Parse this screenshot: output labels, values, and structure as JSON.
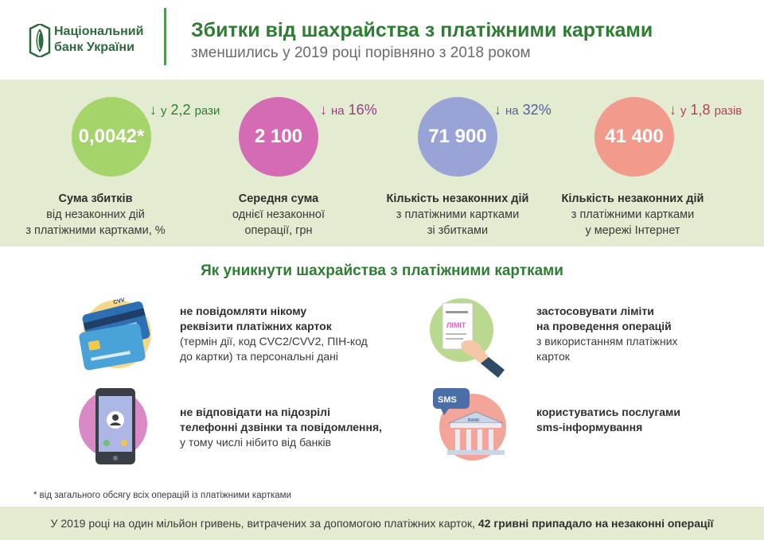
{
  "header": {
    "bank_line1": "Національний",
    "bank_line2": "банк України",
    "title": "Збитки від шахрайства з платіжними картками",
    "subtitle": "зменшились у 2019 році порівняно з 2018 роком"
  },
  "colors": {
    "green_dark": "#2e7d32",
    "band": "#e3ecd0",
    "stat1": "#a5d46a",
    "stat2": "#d56bb5",
    "stat3": "#9aa3d6",
    "stat4": "#f29a8c",
    "change1": "#2e7d32",
    "change2": "#9b3c86",
    "change3": "#5560a0",
    "change4": "#b0435a"
  },
  "stats": [
    {
      "value": "0,0042*",
      "change_prefix": "у",
      "change_value": "2,2",
      "change_suffix": "рази",
      "label_bold": "Сума збитків",
      "label_line2": "від незаконних дій",
      "label_line3": "з платіжними картками, %"
    },
    {
      "value": "2 100",
      "change_prefix": "на",
      "change_value": "16%",
      "change_suffix": "",
      "label_bold": "Середня сума",
      "label_line2": "однієї незаконної",
      "label_line3": "операції, грн"
    },
    {
      "value": "71 900",
      "change_prefix": "на",
      "change_value": "32%",
      "change_suffix": "",
      "label_bold": "Кількість незаконних дій",
      "label_line2": "з платіжними картками",
      "label_line3": "зі збитками"
    },
    {
      "value": "41 400",
      "change_prefix": "у",
      "change_value": "1,8",
      "change_suffix": "разів",
      "label_bold": "Кількість незаконних дій",
      "label_line2": "з платіжними картками",
      "label_line3": "у мережі Інтернет"
    }
  ],
  "tips": {
    "title": "Як уникнути шахрайства з платіжними картками",
    "items": [
      {
        "bold1": "не повідомляти нікому",
        "bold2": "реквізити платіжних карток",
        "text1": "(термін дії, код CVC2/CVV2, ПІН-код",
        "text2": "до картки) та персональні дані",
        "icon_label": "CVV"
      },
      {
        "bold1": "застосовувати ліміти",
        "bold2": "на проведення операцій",
        "text1": "з використанням платіжних",
        "text2": "карток",
        "icon_label": "ЛІМІТ"
      },
      {
        "bold1": "не відповідати на підозрілі",
        "bold2": "телефонні дзвінки та повідомлення,",
        "text1": "у тому числі нібито від банків",
        "text2": ""
      },
      {
        "bold1": "користуватись послугами",
        "bold2": "sms-інформування",
        "text1": "",
        "text2": "",
        "icon_label": "SMS",
        "bank_label": "BANK"
      }
    ]
  },
  "footnote": "* від загального обсягу всіх операцій із платіжними картками",
  "footer": {
    "text": "У 2019 році на один мільйон гривень, витрачених  за допомогою платіжних карток,",
    "bold": "42 гривні припадало на незаконні операції"
  }
}
